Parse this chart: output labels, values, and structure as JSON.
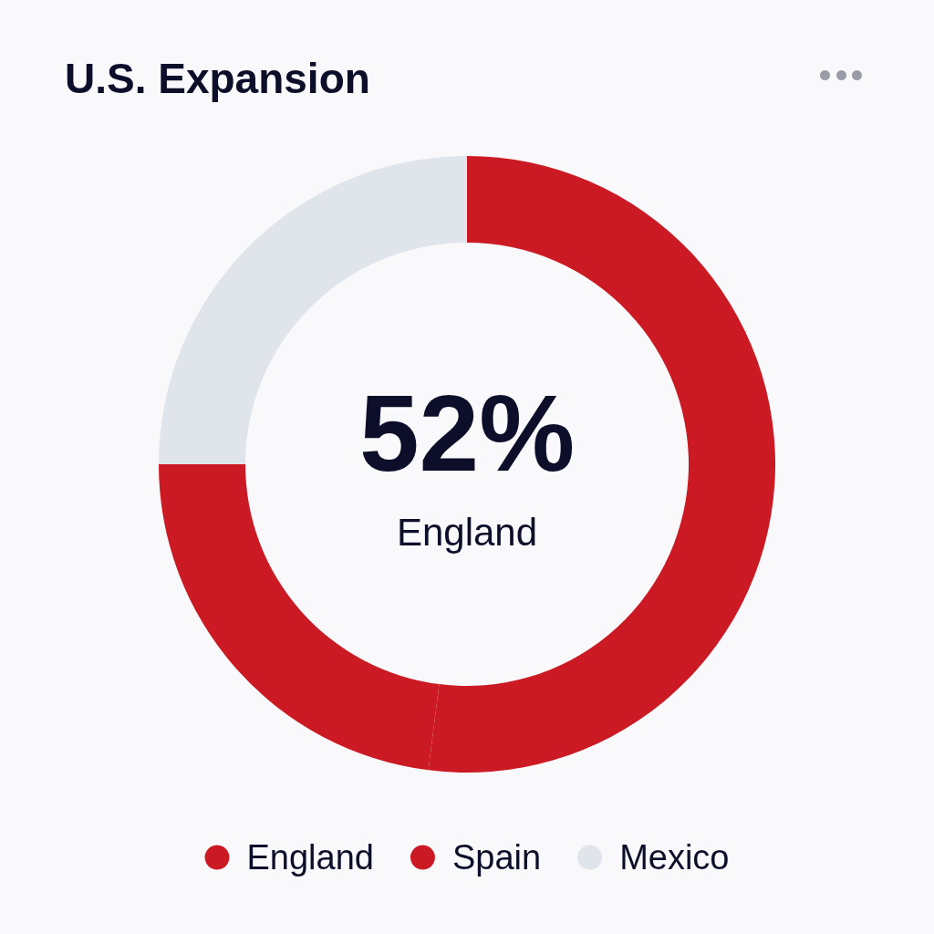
{
  "chart_data": {
    "type": "donut",
    "title": "U.S. Expansion",
    "categories": [
      "England",
      "Spain",
      "Mexico"
    ],
    "values": [
      52,
      23,
      25
    ],
    "colors": [
      "#cb1a24",
      "#cb1a24",
      "#e0e4eb"
    ],
    "annotations": [
      "52%",
      "England"
    ],
    "legend": "bottom"
  }
}
